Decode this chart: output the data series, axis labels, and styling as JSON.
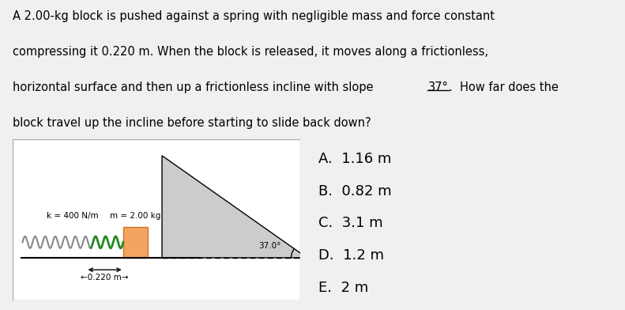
{
  "background_color": "#f0f0f0",
  "line1": "A 2.00-kg block is pushed against a spring with negligible mass and force constant",
  "line2": "compressing it 0.220 m. When the block is released, it moves along a frictionless,",
  "line3_pre": "horizontal surface and then up a frictionless incline with slope ",
  "line3_angle": "37°",
  "line3_post": ".  How far does the",
  "line4": "block travel up the incline before starting to slide back down?",
  "choices": [
    "A.  1.16 m",
    "B.  0.82 m",
    "C.  3.1 m",
    "D.  1.2 m",
    "E.  2 m"
  ],
  "spring_label": "k = 400 N/m",
  "mass_label": "m = 2.00 kg",
  "compression_label": "←0.220 m→",
  "angle_label": "37.0°",
  "block_color": "#F4A460",
  "block_edge_color": "#cc7722",
  "spring_color_main": "#888888",
  "spring_color_compressed": "#228B22",
  "incline_fill_color": "#cccccc",
  "diagram_bg": "#ffffff",
  "diagram_border_color": "#aaaaaa"
}
